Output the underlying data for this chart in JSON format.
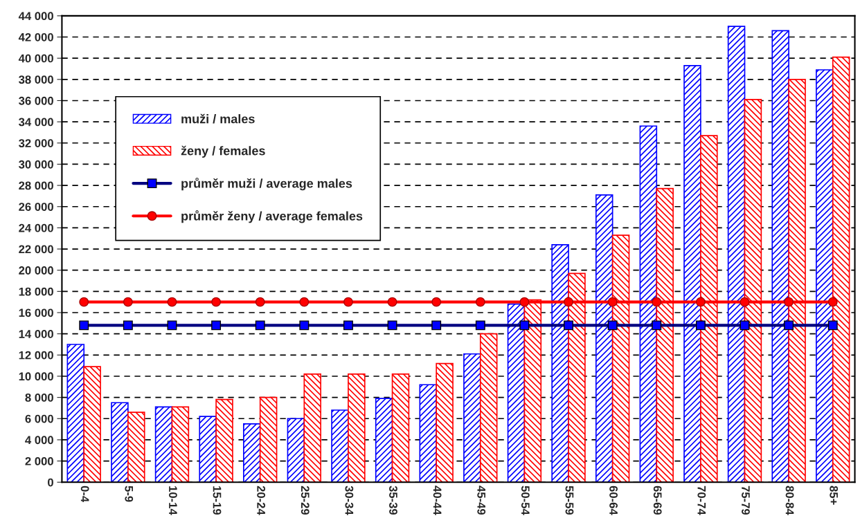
{
  "chart_data": {
    "type": "bar",
    "categories": [
      "0-4",
      "5-9",
      "10-14",
      "15-19",
      "20-24",
      "25-29",
      "30-34",
      "35-39",
      "40-44",
      "45-49",
      "50-54",
      "55-59",
      "60-64",
      "65-69",
      "70-74",
      "75-79",
      "80-84",
      "85+"
    ],
    "series": [
      {
        "name": "muži / males",
        "color": "#0000ff",
        "values": [
          13000,
          7500,
          7100,
          6200,
          5500,
          6000,
          6800,
          7900,
          9200,
          12100,
          16800,
          22400,
          27100,
          33600,
          39300,
          43000,
          42600,
          38900
        ]
      },
      {
        "name": "ženy / females",
        "color": "#ff0000",
        "values": [
          10900,
          6600,
          7100,
          7800,
          8000,
          10200,
          10200,
          10200,
          11200,
          14000,
          17200,
          19700,
          23300,
          27700,
          32700,
          36100,
          38000,
          40100
        ]
      },
      {
        "name": "průměr muži / average males",
        "type": "line",
        "color": "#000080",
        "marker": "square",
        "values": [
          14800,
          14800,
          14800,
          14800,
          14800,
          14800,
          14800,
          14800,
          14800,
          14800,
          14800,
          14800,
          14800,
          14800,
          14800,
          14800,
          14800,
          14800
        ]
      },
      {
        "name": "průměr ženy / average females",
        "type": "line",
        "color": "#ff0000",
        "marker": "circle",
        "values": [
          17000,
          17000,
          17000,
          17000,
          17000,
          17000,
          17000,
          17000,
          17000,
          17000,
          17000,
          17000,
          17000,
          17000,
          17000,
          17000,
          17000,
          17000
        ]
      }
    ],
    "ylim": [
      0,
      44000
    ],
    "yticks": [
      {
        "value": 0,
        "label": "0"
      },
      {
        "value": 2000,
        "label": "2 000"
      },
      {
        "value": 4000,
        "label": "4 000"
      },
      {
        "value": 6000,
        "label": "6 000"
      },
      {
        "value": 8000,
        "label": "8 000"
      },
      {
        "value": 10000,
        "label": "10 000"
      },
      {
        "value": 12000,
        "label": "12 000"
      },
      {
        "value": 14000,
        "label": "14 000"
      },
      {
        "value": 16000,
        "label": "16 000"
      },
      {
        "value": 18000,
        "label": "18 000"
      },
      {
        "value": 20000,
        "label": "20 000"
      },
      {
        "value": 22000,
        "label": "22 000"
      },
      {
        "value": 24000,
        "label": "24 000"
      },
      {
        "value": 26000,
        "label": "26 000"
      },
      {
        "value": 28000,
        "label": "28 000"
      },
      {
        "value": 30000,
        "label": "30 000"
      },
      {
        "value": 32000,
        "label": "32 000"
      },
      {
        "value": 34000,
        "label": "34 000"
      },
      {
        "value": 36000,
        "label": "36 000"
      },
      {
        "value": 38000,
        "label": "38 000"
      },
      {
        "value": 40000,
        "label": "40 000"
      },
      {
        "value": 42000,
        "label": "42 000"
      },
      {
        "value": 44000,
        "label": "44 000"
      }
    ],
    "grid": "y",
    "legend": "top left"
  }
}
